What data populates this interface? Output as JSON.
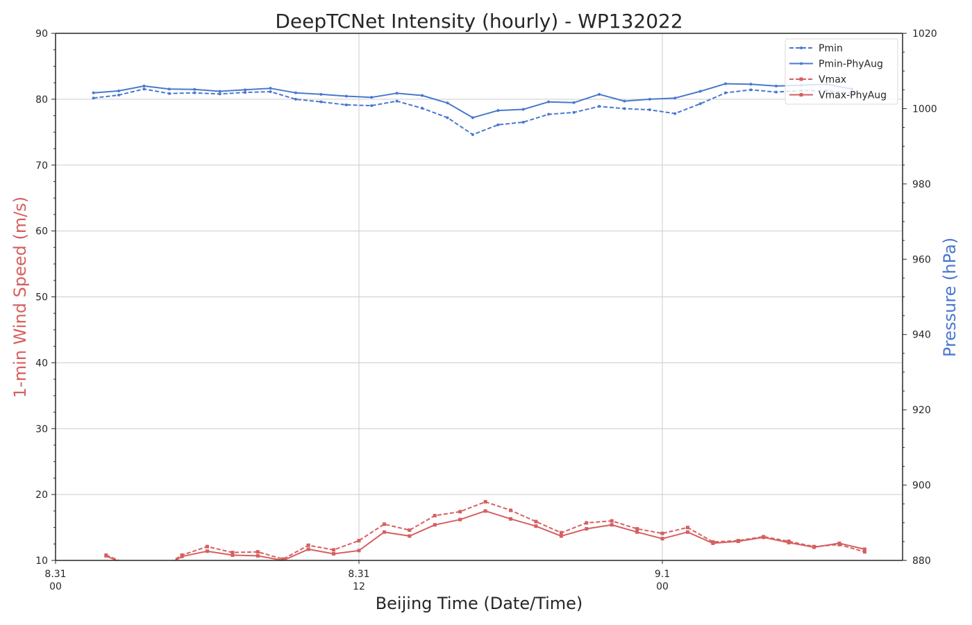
{
  "chart_data": {
    "type": "line",
    "title": "DeepTCNet Intensity (hourly) - WP132022",
    "xlabel": "Beijing Time (Date/Time)",
    "ylabel_left": "1-min Wind Speed (m/s)",
    "ylabel_right": "Pressure (hPa)",
    "x_unit": "hours since 8.31 00",
    "xlim": [
      0,
      33.5
    ],
    "x_ticks": [
      {
        "x": 0,
        "line1": "8.31",
        "line2": "00"
      },
      {
        "x": 12,
        "line1": "8.31",
        "line2": "12"
      },
      {
        "x": 24,
        "line1": "9.1",
        "line2": "00"
      }
    ],
    "ylim_left": [
      10,
      90
    ],
    "yticks_left": [
      10,
      20,
      30,
      40,
      50,
      60,
      70,
      80,
      90
    ],
    "ylim_right": [
      880,
      1020
    ],
    "yticks_right": [
      880,
      900,
      920,
      940,
      960,
      980,
      1000,
      1020
    ],
    "grid": true,
    "legend_position": "top-right",
    "colors": {
      "pressure": "#4878cf",
      "wind": "#d65f5f"
    },
    "series": [
      {
        "name": "Pmin",
        "axis": "right",
        "style": "dashed",
        "marker": "dot",
        "color": "#4878cf",
        "x": [
          1.5,
          2.5,
          3.5,
          4.5,
          5.5,
          6.5,
          7.5,
          8.5,
          9.5,
          10.5,
          11.5,
          12.5,
          13.5,
          14.5,
          15.5,
          16.5,
          17.5,
          18.5,
          19.5,
          20.5,
          21.5,
          22.5,
          23.5,
          24.5,
          25.5,
          26.5,
          27.5,
          28.5,
          29.5,
          30.5,
          31.5
        ],
        "values": [
          1002.8,
          1003.6,
          1005.2,
          1004.0,
          1004.2,
          1003.9,
          1004.3,
          1004.5,
          1002.5,
          1001.8,
          1001.0,
          1000.8,
          1002.0,
          1000.1,
          997.6,
          993.1,
          995.7,
          996.4,
          998.5,
          999.0,
          1000.6,
          1000.0,
          999.7,
          998.7,
          1001.3,
          1004.2,
          1005.0,
          1004.4,
          1004.8,
          1004.8,
          1004.0
        ]
      },
      {
        "name": "Pmin-PhyAug",
        "axis": "right",
        "style": "solid",
        "marker": "dot",
        "color": "#4878cf",
        "x": [
          1.5,
          2.5,
          3.5,
          4.5,
          5.5,
          6.5,
          7.5,
          8.5,
          9.5,
          10.5,
          11.5,
          12.5,
          13.5,
          14.5,
          15.5,
          16.5,
          17.5,
          18.5,
          19.5,
          20.5,
          21.5,
          22.5,
          23.5,
          24.5,
          25.5,
          26.5,
          27.5,
          28.5,
          29.5,
          30.5,
          31.5
        ],
        "values": [
          1004.2,
          1004.7,
          1006.0,
          1005.2,
          1005.1,
          1004.6,
          1005.0,
          1005.4,
          1004.2,
          1003.8,
          1003.3,
          1003.0,
          1004.1,
          1003.5,
          1001.5,
          997.6,
          999.5,
          999.8,
          1001.8,
          1001.6,
          1003.8,
          1002.0,
          1002.5,
          1002.8,
          1004.6,
          1006.6,
          1006.5,
          1006.0,
          1006.2,
          1006.5,
          1005.2
        ]
      },
      {
        "name": "Vmax",
        "axis": "left",
        "style": "dashed",
        "marker": "square",
        "color": "#d65f5f",
        "x": [
          2,
          3,
          4,
          5,
          6,
          7,
          8,
          9,
          10,
          11,
          12,
          13,
          14,
          15,
          16,
          17,
          18,
          19,
          20,
          21,
          22,
          23,
          24,
          25,
          26,
          27,
          28,
          29,
          30,
          31,
          32
        ],
        "values": [
          10.8,
          9.2,
          8.5,
          10.8,
          12.1,
          11.2,
          11.3,
          10.2,
          12.3,
          11.6,
          13.0,
          15.5,
          14.6,
          16.8,
          17.4,
          18.9,
          17.6,
          15.9,
          14.2,
          15.7,
          16.0,
          14.8,
          14.1,
          15.0,
          12.8,
          13.0,
          13.6,
          12.9,
          12.1,
          12.4,
          11.3
        ]
      },
      {
        "name": "Vmax-PhyAug",
        "axis": "left",
        "style": "solid",
        "marker": "square",
        "color": "#d65f5f",
        "x": [
          2,
          3,
          4,
          5,
          6,
          7,
          8,
          9,
          10,
          11,
          12,
          13,
          14,
          15,
          16,
          17,
          18,
          19,
          20,
          21,
          22,
          23,
          24,
          25,
          26,
          27,
          28,
          29,
          30,
          31,
          32
        ],
        "values": [
          10.7,
          9.0,
          8.3,
          10.6,
          11.4,
          10.8,
          10.7,
          10.0,
          11.7,
          11.0,
          11.5,
          14.3,
          13.7,
          15.4,
          16.2,
          17.5,
          16.3,
          15.2,
          13.7,
          14.8,
          15.4,
          14.3,
          13.3,
          14.3,
          12.6,
          12.9,
          13.5,
          12.7,
          12.0,
          12.6,
          11.7
        ]
      }
    ]
  }
}
